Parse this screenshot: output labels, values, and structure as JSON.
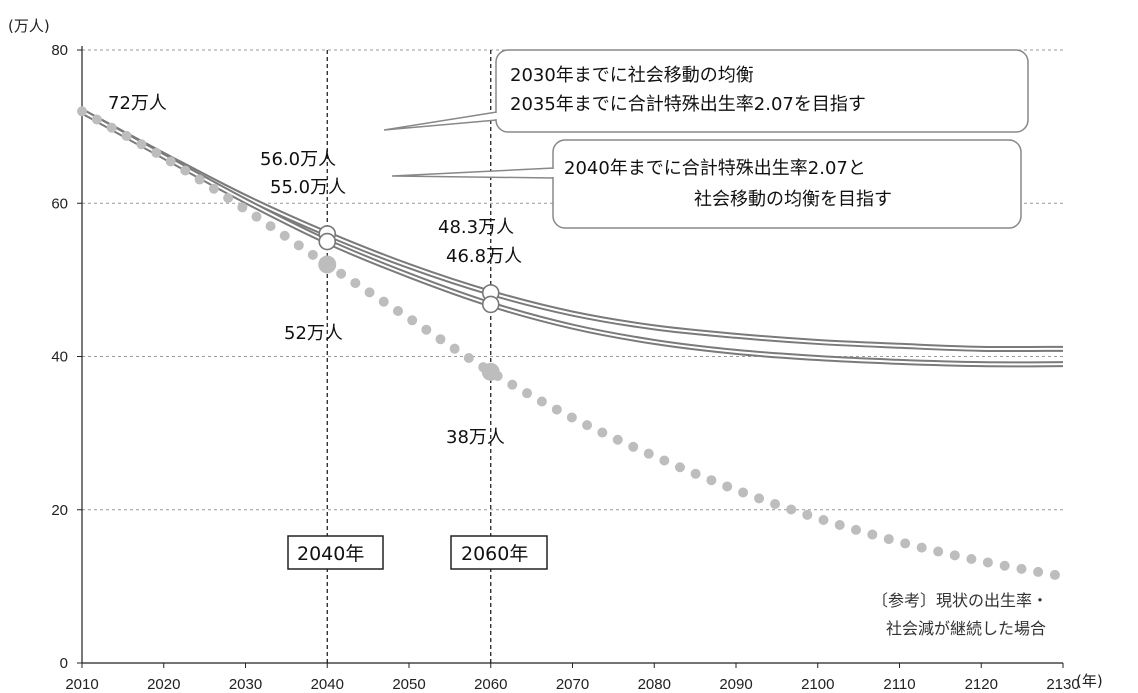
{
  "chart_data": {
    "type": "line",
    "ylabel": "(万人)",
    "xlabel": "(年)",
    "xlim": [
      2010,
      2130
    ],
    "ylim": [
      0,
      80
    ],
    "x_ticks": [
      "2010",
      "2020",
      "2030",
      "2040",
      "2050",
      "2060",
      "2070",
      "2080",
      "2090",
      "2100",
      "2110",
      "2120",
      "2130"
    ],
    "y_ticks": [
      "0",
      "20",
      "40",
      "60",
      "80"
    ],
    "grid": "horizontal dashed",
    "series": [
      {
        "style": "solid double line",
        "color": "#7a7a7a",
        "x": [
          2010,
          2020,
          2030,
          2040,
          2050,
          2060,
          2070,
          2080,
          2090,
          2100,
          2110,
          2120,
          2130
        ],
        "values": [
          72,
          66.3,
          60.8,
          56.0,
          51.8,
          48.3,
          45.6,
          43.8,
          42.7,
          41.9,
          41.4,
          41.0,
          41.0
        ]
      },
      {
        "style": "solid double line",
        "color": "#7a7a7a",
        "x": [
          2010,
          2020,
          2030,
          2040,
          2050,
          2060,
          2070,
          2080,
          2090,
          2100,
          2110,
          2120,
          2130
        ],
        "values": [
          72,
          66.1,
          60.3,
          55.0,
          50.6,
          46.8,
          43.9,
          41.9,
          40.6,
          39.8,
          39.3,
          39.0,
          39.0
        ]
      },
      {
        "style": "dotted",
        "color": "#bdbdbd",
        "x": [
          2010,
          2020,
          2030,
          2040,
          2050,
          2060,
          2070,
          2080,
          2090,
          2100,
          2110,
          2120,
          2130
        ],
        "values": [
          72,
          66.0,
          59.2,
          52.0,
          45.0,
          38.0,
          32.0,
          27.0,
          22.6,
          18.9,
          15.8,
          13.3,
          11.3
        ]
      }
    ],
    "markers": [
      {
        "x": 2040,
        "y": 56.0,
        "kind": "hollow"
      },
      {
        "x": 2040,
        "y": 55.0,
        "kind": "hollow"
      },
      {
        "x": 2060,
        "y": 48.3,
        "kind": "hollow"
      },
      {
        "x": 2060,
        "y": 46.8,
        "kind": "hollow"
      },
      {
        "x": 2040,
        "y": 52.0,
        "kind": "filled"
      },
      {
        "x": 2060,
        "y": 38.0,
        "kind": "filled"
      }
    ],
    "vlines": [
      {
        "x": 2040,
        "label": "2040年"
      },
      {
        "x": 2060,
        "label": "2060年"
      }
    ],
    "annotations": {
      "start": "72万人",
      "y2040_a": "56.0万人",
      "y2040_b": "55.0万人",
      "y2060_a": "48.3万人",
      "y2060_b": "46.8万人",
      "y2040_ref": "52万人",
      "y2060_ref": "38万人"
    },
    "callouts": {
      "upper_line1": "2030年までに社会移動の均衡",
      "upper_line2": "2035年までに合計特殊出生率2.07を目指す",
      "lower_line1": "2040年までに合計特殊出生率2.07と",
      "lower_line2": "社会移動の均衡を目指す"
    },
    "note": {
      "line1": "〔参考〕現状の出生率・",
      "line2": "社会減が継続した場合"
    }
  }
}
